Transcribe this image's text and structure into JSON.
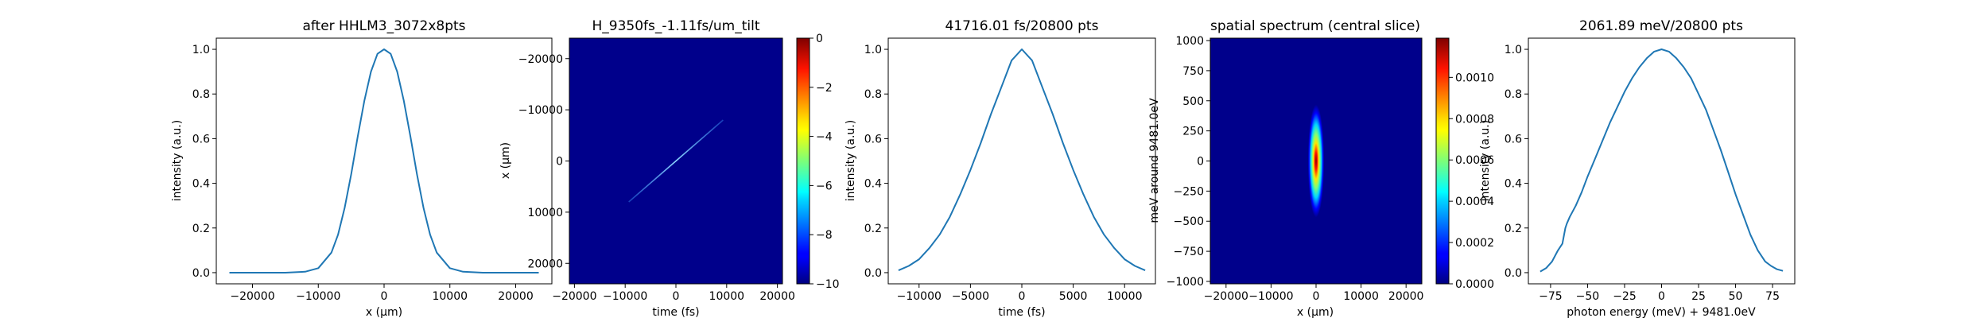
{
  "chart_data": [
    {
      "type": "line",
      "title": "after HHLM3_3072x8pts",
      "xlabel": "x (μm)",
      "ylabel": "intensity (a.u.)",
      "xlim": [
        -25500,
        25500
      ],
      "ylim": [
        -0.05,
        1.05
      ],
      "xticks": [
        -20000,
        -10000,
        0,
        10000,
        20000
      ],
      "xticklabels": [
        "−20000",
        "−10000",
        "0",
        "10000",
        "20000"
      ],
      "yticks": [
        0.0,
        0.2,
        0.4,
        0.6,
        0.8,
        1.0
      ],
      "yticklabels": [
        "0.0",
        "0.2",
        "0.4",
        "0.6",
        "0.8",
        "1.0"
      ],
      "line_color": "#1f77b4",
      "series": [
        {
          "x": [
            -23500,
            -20000,
            -15000,
            -12000,
            -10000,
            -8000,
            -7000,
            -6000,
            -5000,
            -4000,
            -3000,
            -2000,
            -1000,
            0,
            1000,
            2000,
            3000,
            4000,
            5000,
            6000,
            7000,
            8000,
            10000,
            12000,
            15000,
            20000,
            23500
          ],
          "y": [
            0.0,
            0.0,
            0.0,
            0.004,
            0.02,
            0.09,
            0.17,
            0.29,
            0.44,
            0.61,
            0.77,
            0.9,
            0.98,
            1.0,
            0.98,
            0.9,
            0.77,
            0.61,
            0.44,
            0.29,
            0.17,
            0.09,
            0.02,
            0.004,
            0.0,
            0.0,
            0.0
          ]
        }
      ]
    },
    {
      "type": "heatmap",
      "title": "H_9350fs_-1.11fs/um_tilt",
      "xlabel": "time (fs)",
      "ylabel": "x (μm)",
      "xlim": [
        -21000,
        21000
      ],
      "ylim": [
        -24000,
        24000
      ],
      "y_inverted": true,
      "xticks": [
        -20000,
        -10000,
        0,
        10000,
        20000
      ],
      "xticklabels": [
        "−20000",
        "−10000",
        "0",
        "10000",
        "20000"
      ],
      "yticks": [
        -20000,
        -10000,
        0,
        10000,
        20000
      ],
      "yticklabels": [
        "−20000",
        "−10000",
        "0",
        "10000",
        "20000"
      ],
      "background_color": "#00008b",
      "feature": {
        "x_start": -9300,
        "y_start": 8000,
        "x_end": 9300,
        "y_end": -8000,
        "color": "#3c9cff"
      },
      "colorbar": {
        "range": [
          -10,
          0
        ],
        "ticks": [
          0,
          -2,
          -4,
          -6,
          -8,
          -10
        ],
        "ticklabels": [
          "0",
          "−2",
          "−4",
          "−6",
          "−8",
          "−10"
        ],
        "colormap": "jet"
      }
    },
    {
      "type": "line",
      "title": "41716.01 fs/20800 pts",
      "xlabel": "time (fs)",
      "ylabel": "intensity (a.u.)",
      "xlim": [
        -13000,
        13000
      ],
      "ylim": [
        -0.05,
        1.05
      ],
      "xticks": [
        -10000,
        -5000,
        0,
        5000,
        10000
      ],
      "xticklabels": [
        "−10000",
        "−5000",
        "0",
        "5000",
        "10000"
      ],
      "yticks": [
        0.0,
        0.2,
        0.4,
        0.6,
        0.8,
        1.0
      ],
      "yticklabels": [
        "0.0",
        "0.2",
        "0.4",
        "0.6",
        "0.8",
        "1.0"
      ],
      "line_color": "#1f77b4",
      "series": [
        {
          "x": [
            -12000,
            -11000,
            -10000,
            -9000,
            -8000,
            -7000,
            -6000,
            -5000,
            -4000,
            -3000,
            -2000,
            -1000,
            0,
            1000,
            2000,
            3000,
            4000,
            5000,
            6000,
            7000,
            8000,
            9000,
            10000,
            11000,
            12000
          ],
          "y": [
            0.01,
            0.03,
            0.06,
            0.11,
            0.17,
            0.25,
            0.35,
            0.46,
            0.58,
            0.71,
            0.83,
            0.95,
            1.0,
            0.95,
            0.83,
            0.71,
            0.58,
            0.46,
            0.35,
            0.25,
            0.17,
            0.11,
            0.06,
            0.03,
            0.01
          ]
        }
      ]
    },
    {
      "type": "heatmap",
      "title": "spatial spectrum (central slice)",
      "xlabel": "x (μm)",
      "ylabel": "meV around 9481.0eV",
      "xlim": [
        -23500,
        23500
      ],
      "ylim": [
        -1020,
        1020
      ],
      "xticks": [
        -20000,
        -10000,
        0,
        10000,
        20000
      ],
      "xticklabels": [
        "−20000",
        "−10000",
        "0",
        "10000",
        "20000"
      ],
      "yticks": [
        1000,
        750,
        500,
        250,
        0,
        -250,
        -500,
        -750,
        -1000
      ],
      "yticklabels": [
        "1000",
        "750",
        "500",
        "250",
        "0",
        "−250",
        "−500",
        "−750",
        "−1000"
      ],
      "background_color": "#00008b",
      "blob": {
        "x_center": 0,
        "y_center": 0,
        "x_sigma": 700,
        "y_sigma": 180
      },
      "colorbar": {
        "range": [
          0,
          0.00119
        ],
        "ticks": [
          0.001,
          0.0008,
          0.0006,
          0.0004,
          0.0002,
          0.0
        ],
        "ticklabels": [
          "0.0010",
          "0.0008",
          "0.0006",
          "0.0004",
          "0.0002",
          "0.0000"
        ],
        "colormap": "jet"
      }
    },
    {
      "type": "line",
      "title": "2061.89 meV/20800 pts",
      "xlabel": "photon energy (meV) + 9481.0eV",
      "ylabel": "intensity (a.u.)",
      "xlim": [
        -90,
        90
      ],
      "ylim": [
        -0.05,
        1.05
      ],
      "xticks": [
        -75,
        -50,
        -25,
        0,
        25,
        50,
        75
      ],
      "xticklabels": [
        "−75",
        "−50",
        "−25",
        "0",
        "25",
        "50",
        "75"
      ],
      "yticks": [
        0.0,
        0.2,
        0.4,
        0.6,
        0.8,
        1.0
      ],
      "yticklabels": [
        "0.0",
        "0.2",
        "0.4",
        "0.6",
        "0.8",
        "1.0"
      ],
      "line_color": "#1f77b4",
      "series": [
        {
          "x": [
            -82,
            -78,
            -74,
            -70,
            -67,
            -65,
            -64,
            -62,
            -58,
            -54,
            -50,
            -45,
            -40,
            -35,
            -30,
            -25,
            -20,
            -15,
            -10,
            -5,
            0,
            5,
            10,
            15,
            20,
            25,
            30,
            35,
            40,
            45,
            50,
            55,
            60,
            65,
            70,
            74,
            78,
            82
          ],
          "y": [
            0.005,
            0.02,
            0.05,
            0.1,
            0.13,
            0.2,
            0.22,
            0.25,
            0.3,
            0.36,
            0.43,
            0.51,
            0.59,
            0.67,
            0.74,
            0.81,
            0.87,
            0.92,
            0.96,
            0.99,
            1.0,
            0.99,
            0.96,
            0.92,
            0.87,
            0.8,
            0.73,
            0.64,
            0.55,
            0.45,
            0.35,
            0.26,
            0.17,
            0.1,
            0.05,
            0.03,
            0.015,
            0.008
          ]
        }
      ]
    }
  ]
}
